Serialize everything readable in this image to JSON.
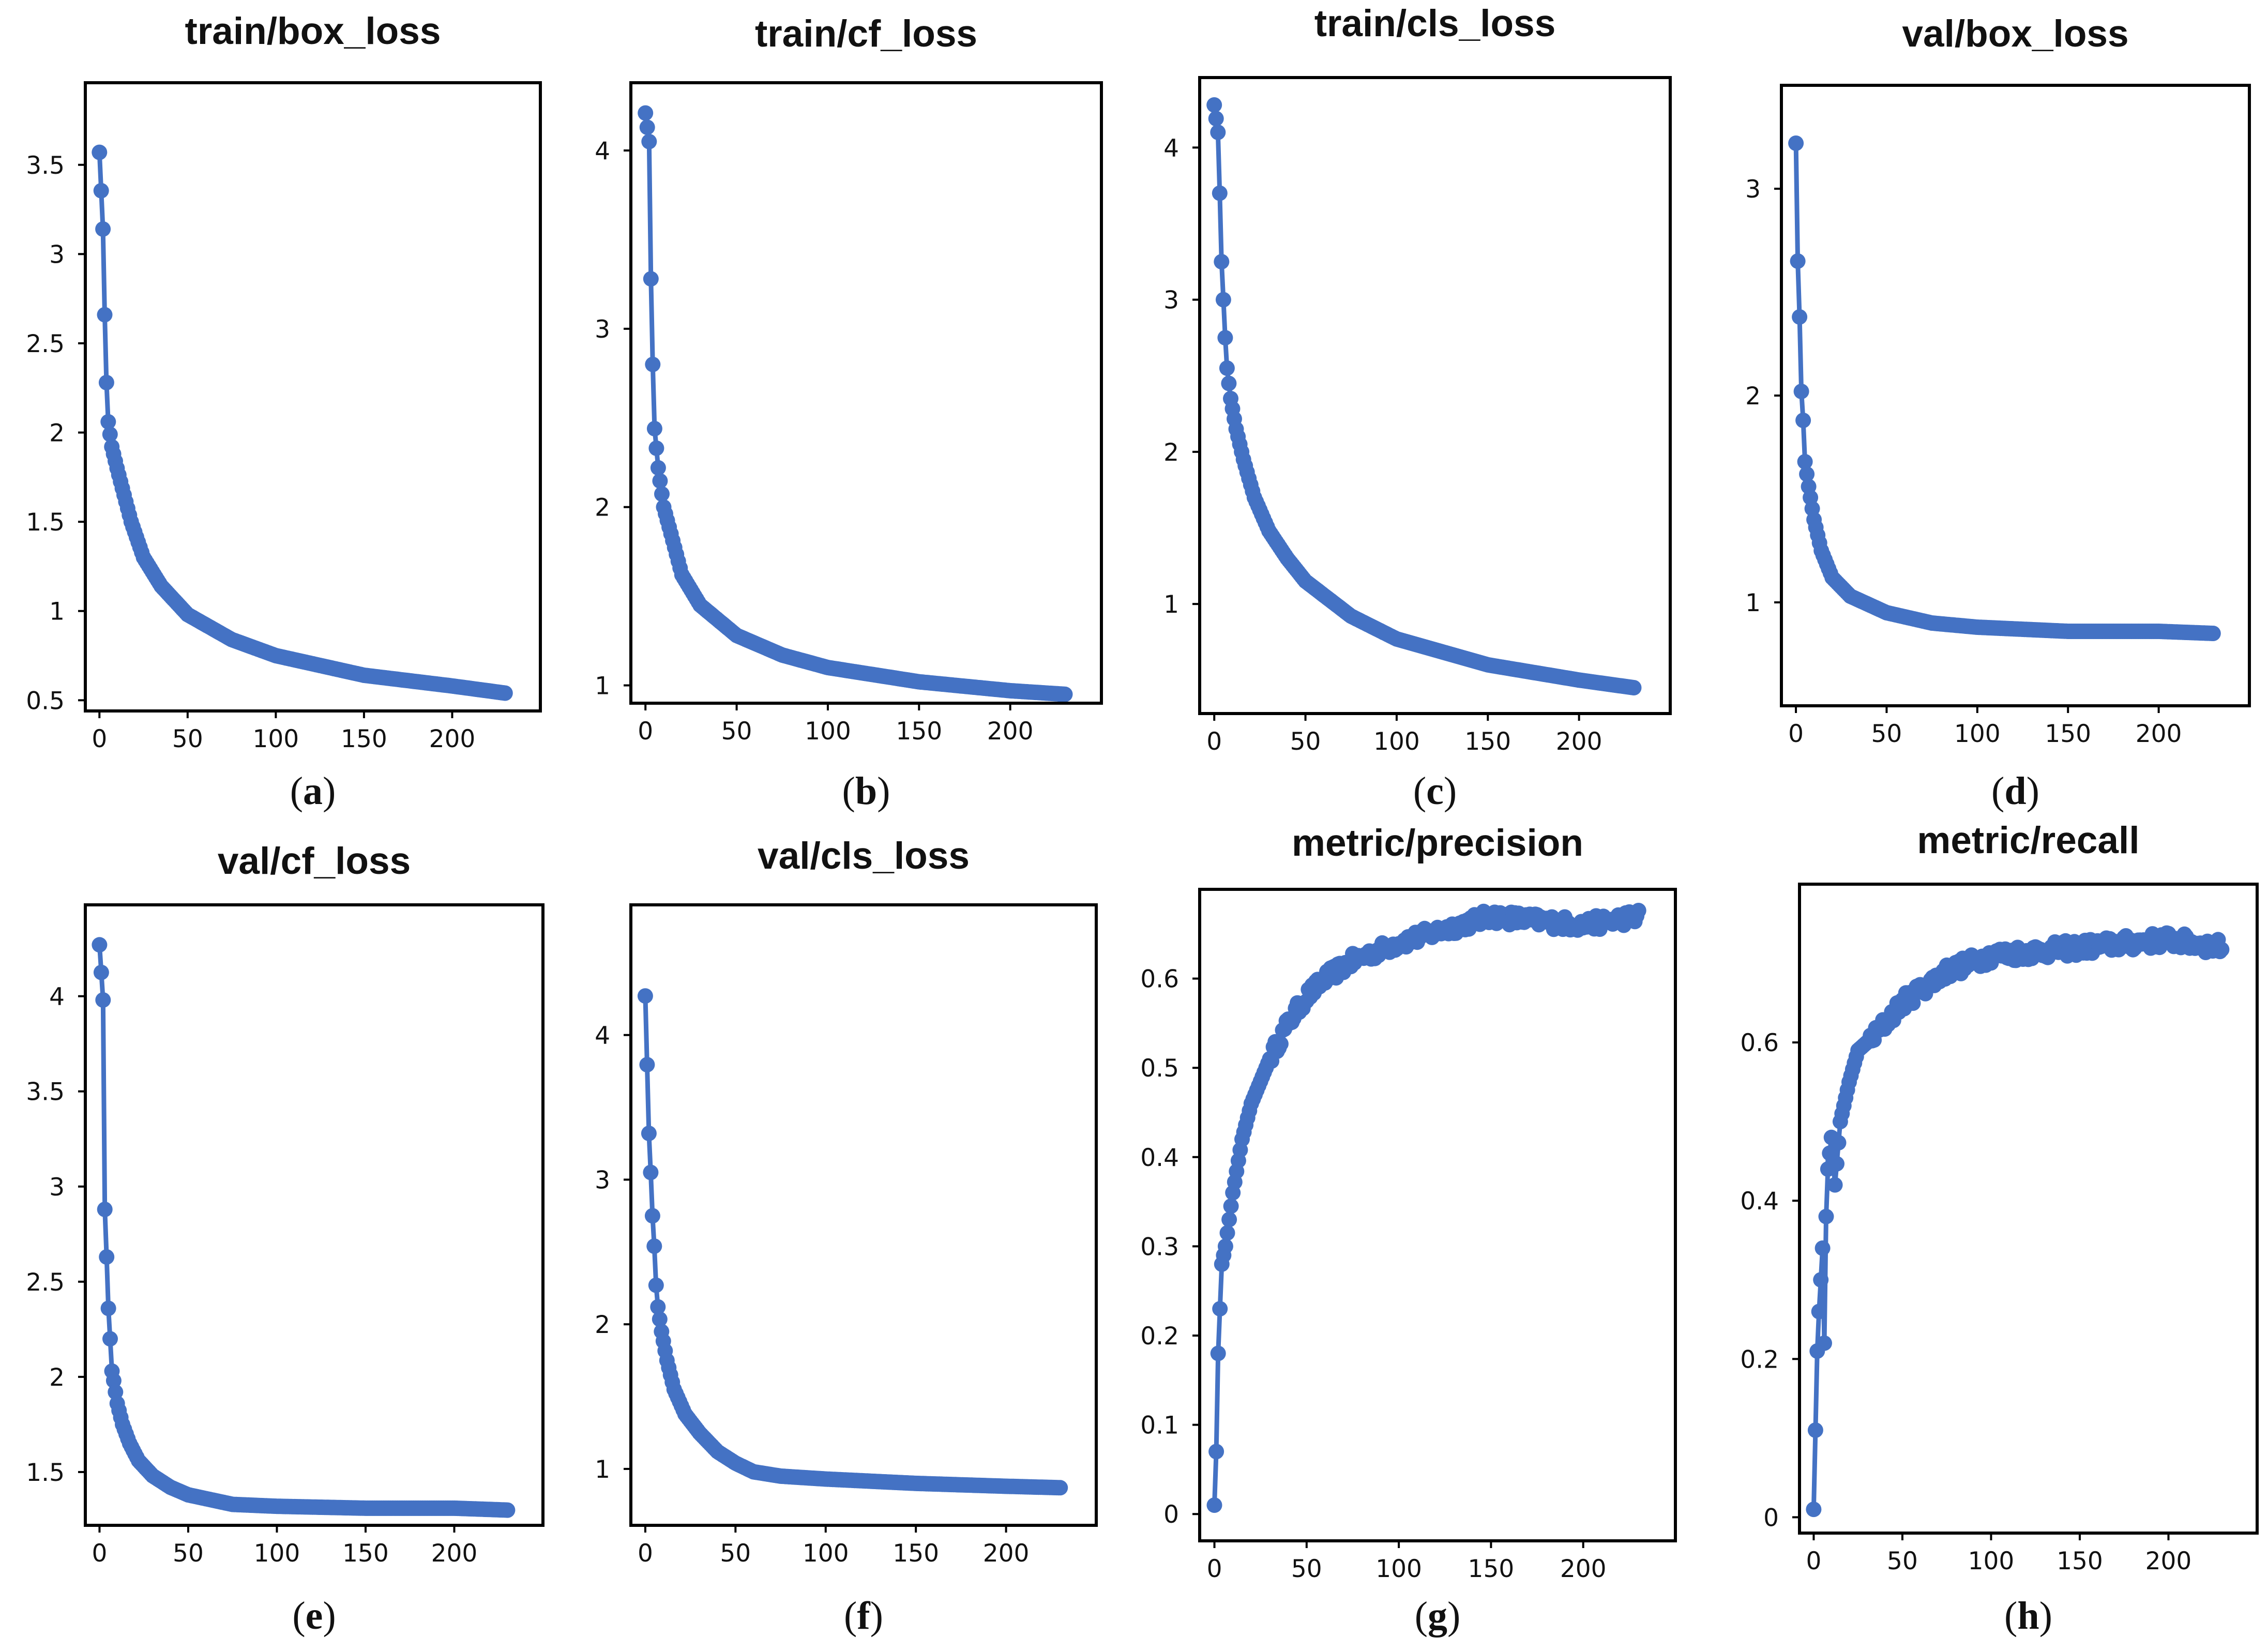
{
  "figure": {
    "series_color": "#4472c4"
  },
  "chart_data": [
    {
      "id": "a",
      "type": "line",
      "marker": "circle",
      "title": "train/box_loss",
      "caption": "a",
      "xlabel": "",
      "ylabel": "",
      "xlim": [
        -8,
        250
      ],
      "ylim": [
        0.44,
        3.96
      ],
      "xticks": [
        0,
        50,
        100,
        150,
        200
      ],
      "xtick_labels": [
        "0",
        "50",
        "100",
        "150",
        "200"
      ],
      "yticks": [
        0.5,
        1,
        1.5,
        2,
        2.5,
        3,
        3.5
      ],
      "ytick_labels": [
        "0.5",
        "1",
        "1.5",
        "2",
        "2.5",
        "3",
        "3.5"
      ],
      "curve": {
        "kind": "decay",
        "x_end": 230,
        "y0": 3.57,
        "y_end": 0.54,
        "knots": [
          [
            0,
            3.57
          ],
          [
            2,
            3.14
          ],
          [
            3,
            2.66
          ],
          [
            4,
            2.28
          ],
          [
            5,
            2.06
          ],
          [
            7,
            1.92
          ],
          [
            10,
            1.8
          ],
          [
            14,
            1.65
          ],
          [
            18,
            1.5
          ],
          [
            25,
            1.3
          ],
          [
            35,
            1.14
          ],
          [
            50,
            0.98
          ],
          [
            75,
            0.84
          ],
          [
            100,
            0.75
          ],
          [
            150,
            0.64
          ],
          [
            200,
            0.58
          ],
          [
            230,
            0.54
          ]
        ]
      },
      "series": [
        {
          "name": "train/box_loss",
          "note": "230 epochs, decaying curve"
        }
      ]
    },
    {
      "id": "b",
      "type": "line",
      "marker": "circle",
      "title": "train/cf_loss",
      "caption": "b",
      "xlabel": "",
      "ylabel": "",
      "xlim": [
        -8,
        250
      ],
      "ylim": [
        0.9,
        4.38
      ],
      "xticks": [
        0,
        50,
        100,
        150,
        200
      ],
      "xtick_labels": [
        "0",
        "50",
        "100",
        "150",
        "200"
      ],
      "yticks": [
        1,
        2,
        3,
        4
      ],
      "ytick_labels": [
        "1",
        "2",
        "3",
        "4"
      ],
      "curve": {
        "kind": "decay",
        "x_end": 230,
        "knots": [
          [
            0,
            4.21
          ],
          [
            2,
            4.05
          ],
          [
            3,
            3.28
          ],
          [
            4,
            2.8
          ],
          [
            5,
            2.44
          ],
          [
            7,
            2.22
          ],
          [
            10,
            2.0
          ],
          [
            14,
            1.85
          ],
          [
            20,
            1.62
          ],
          [
            30,
            1.45
          ],
          [
            50,
            1.28
          ],
          [
            75,
            1.17
          ],
          [
            100,
            1.1
          ],
          [
            150,
            1.02
          ],
          [
            200,
            0.97
          ],
          [
            230,
            0.95
          ]
        ]
      },
      "series": [
        {
          "name": "train/cf_loss",
          "note": "230 epochs"
        }
      ]
    },
    {
      "id": "c",
      "type": "line",
      "marker": "circle",
      "title": "train/cls_loss",
      "caption": "c",
      "xlabel": "",
      "ylabel": "",
      "xlim": [
        -8,
        250
      ],
      "ylim": [
        0.28,
        4.46
      ],
      "xticks": [
        0,
        50,
        100,
        150,
        200
      ],
      "xtick_labels": [
        "0",
        "50",
        "100",
        "150",
        "200"
      ],
      "yticks": [
        1,
        2,
        3,
        4
      ],
      "ytick_labels": [
        "1",
        "2",
        "3",
        "4"
      ],
      "curve": {
        "kind": "decay",
        "x_end": 230,
        "knots": [
          [
            0,
            4.28
          ],
          [
            2,
            4.1
          ],
          [
            3,
            3.7
          ],
          [
            4,
            3.25
          ],
          [
            5,
            3.0
          ],
          [
            6,
            2.75
          ],
          [
            7,
            2.55
          ],
          [
            9,
            2.35
          ],
          [
            12,
            2.15
          ],
          [
            16,
            1.95
          ],
          [
            22,
            1.7
          ],
          [
            30,
            1.48
          ],
          [
            40,
            1.3
          ],
          [
            50,
            1.15
          ],
          [
            75,
            0.92
          ],
          [
            100,
            0.77
          ],
          [
            150,
            0.6
          ],
          [
            200,
            0.5
          ],
          [
            230,
            0.45
          ]
        ]
      },
      "series": [
        {
          "name": "train/cls_loss",
          "note": "230 epochs"
        }
      ]
    },
    {
      "id": "d",
      "type": "line",
      "marker": "circle",
      "title": "val/box_loss",
      "caption": "d",
      "xlabel": "",
      "ylabel": "",
      "xlim": [
        -8,
        250
      ],
      "ylim": [
        0.5,
        3.5
      ],
      "xticks": [
        0,
        50,
        100,
        150,
        200
      ],
      "xtick_labels": [
        "0",
        "50",
        "100",
        "150",
        "200"
      ],
      "yticks": [
        1,
        2,
        3
      ],
      "ytick_labels": [
        "1",
        "2",
        "3"
      ],
      "curve": {
        "kind": "decay",
        "x_end": 230,
        "knots": [
          [
            0,
            3.22
          ],
          [
            1,
            2.65
          ],
          [
            2,
            2.38
          ],
          [
            3,
            2.02
          ],
          [
            4,
            1.88
          ],
          [
            5,
            1.68
          ],
          [
            7,
            1.56
          ],
          [
            10,
            1.4
          ],
          [
            14,
            1.25
          ],
          [
            20,
            1.12
          ],
          [
            30,
            1.03
          ],
          [
            50,
            0.95
          ],
          [
            75,
            0.9
          ],
          [
            100,
            0.88
          ],
          [
            150,
            0.86
          ],
          [
            200,
            0.86
          ],
          [
            230,
            0.85
          ]
        ]
      },
      "series": [
        {
          "name": "val/box_loss",
          "note": "230 epochs"
        }
      ]
    },
    {
      "id": "e",
      "type": "line",
      "marker": "circle",
      "title": "val/cf_loss",
      "caption": "e",
      "xlabel": "",
      "ylabel": "",
      "xlim": [
        -8,
        250
      ],
      "ylim": [
        1.22,
        4.48
      ],
      "xticks": [
        0,
        50,
        100,
        150,
        200
      ],
      "xtick_labels": [
        "0",
        "50",
        "100",
        "150",
        "200"
      ],
      "yticks": [
        1.5,
        2,
        2.5,
        3,
        3.5,
        4
      ],
      "ytick_labels": [
        "1.5",
        "2",
        "2.5",
        "3",
        "3.5",
        "4"
      ],
      "curve": {
        "kind": "decay",
        "x_end": 230,
        "knots": [
          [
            0,
            4.27
          ],
          [
            2,
            3.98
          ],
          [
            3,
            2.88
          ],
          [
            4,
            2.63
          ],
          [
            5,
            2.36
          ],
          [
            6,
            2.2
          ],
          [
            7,
            2.03
          ],
          [
            8,
            1.98
          ],
          [
            10,
            1.86
          ],
          [
            13,
            1.75
          ],
          [
            17,
            1.65
          ],
          [
            22,
            1.56
          ],
          [
            30,
            1.48
          ],
          [
            40,
            1.42
          ],
          [
            50,
            1.38
          ],
          [
            75,
            1.33
          ],
          [
            100,
            1.32
          ],
          [
            150,
            1.31
          ],
          [
            200,
            1.31
          ],
          [
            230,
            1.3
          ]
        ]
      },
      "series": [
        {
          "name": "val/cf_loss",
          "note": "230 epochs"
        }
      ]
    },
    {
      "id": "f",
      "type": "line",
      "marker": "circle",
      "title": "val/cls_loss",
      "caption": "f",
      "xlabel": "",
      "ylabel": "",
      "xlim": [
        -8,
        250
      ],
      "ylim": [
        0.61,
        4.9
      ],
      "xticks": [
        0,
        50,
        100,
        150,
        200
      ],
      "xtick_labels": [
        "0",
        "50",
        "100",
        "150",
        "200"
      ],
      "yticks": [
        1,
        2,
        3,
        4
      ],
      "ytick_labels": [
        "1",
        "2",
        "3",
        "4"
      ],
      "curve": {
        "kind": "decay",
        "x_end": 230,
        "knots": [
          [
            0,
            4.27
          ],
          [
            2,
            3.32
          ],
          [
            3,
            3.05
          ],
          [
            4,
            2.75
          ],
          [
            5,
            2.54
          ],
          [
            6,
            2.27
          ],
          [
            7,
            2.12
          ],
          [
            9,
            1.95
          ],
          [
            12,
            1.75
          ],
          [
            16,
            1.55
          ],
          [
            22,
            1.38
          ],
          [
            30,
            1.25
          ],
          [
            40,
            1.12
          ],
          [
            50,
            1.04
          ],
          [
            60,
            0.98
          ],
          [
            75,
            0.95
          ],
          [
            100,
            0.93
          ],
          [
            150,
            0.9
          ],
          [
            200,
            0.88
          ],
          [
            230,
            0.87
          ]
        ]
      },
      "series": [
        {
          "name": "val/cls_loss",
          "note": "230 epochs"
        }
      ]
    },
    {
      "id": "g",
      "type": "line",
      "marker": "circle",
      "title": "metric/precision",
      "caption": "g",
      "xlabel": "",
      "ylabel": "",
      "xlim": [
        -8,
        250
      ],
      "ylim": [
        -0.03,
        0.7
      ],
      "xticks": [
        0,
        50,
        100,
        150,
        200
      ],
      "xtick_labels": [
        "0",
        "50",
        "100",
        "150",
        "200"
      ],
      "yticks": [
        0,
        0.1,
        0.2,
        0.3,
        0.4,
        0.5,
        0.6
      ],
      "ytick_labels": [
        "0",
        "0.1",
        "0.2",
        "0.3",
        "0.4",
        "0.5",
        "0.6"
      ],
      "curve": {
        "kind": "growth",
        "x_end": 230,
        "noise": 0.008,
        "knots": [
          [
            0,
            0.01
          ],
          [
            1,
            0.07
          ],
          [
            2,
            0.18
          ],
          [
            3,
            0.23
          ],
          [
            4,
            0.28
          ],
          [
            6,
            0.3
          ],
          [
            8,
            0.33
          ],
          [
            10,
            0.36
          ],
          [
            15,
            0.42
          ],
          [
            20,
            0.46
          ],
          [
            30,
            0.51
          ],
          [
            40,
            0.55
          ],
          [
            50,
            0.58
          ],
          [
            60,
            0.6
          ],
          [
            75,
            0.62
          ],
          [
            100,
            0.64
          ],
          [
            150,
            0.67
          ],
          [
            200,
            0.66
          ],
          [
            230,
            0.67
          ]
        ]
      },
      "series": [
        {
          "name": "metric/precision",
          "note": "230 epochs, rising curve"
        }
      ]
    },
    {
      "id": "h",
      "type": "line",
      "marker": "circle",
      "title": "metric/recall",
      "caption": "h",
      "xlabel": "",
      "ylabel": "",
      "xlim": [
        -8,
        250
      ],
      "ylim": [
        -0.02,
        0.8
      ],
      "xticks": [
        0,
        50,
        100,
        150,
        200
      ],
      "xtick_labels": [
        "0",
        "50",
        "100",
        "150",
        "200"
      ],
      "yticks": [
        0,
        0.2,
        0.4,
        0.6
      ],
      "ytick_labels": [
        "0",
        "0.2",
        "0.4",
        "0.6"
      ],
      "curve": {
        "kind": "growth",
        "x_end": 230,
        "noise": 0.01,
        "knots": [
          [
            0,
            0.01
          ],
          [
            2,
            0.21
          ],
          [
            3,
            0.26
          ],
          [
            4,
            0.3
          ],
          [
            5,
            0.34
          ],
          [
            6,
            0.22
          ],
          [
            7,
            0.38
          ],
          [
            8,
            0.44
          ],
          [
            10,
            0.48
          ],
          [
            12,
            0.42
          ],
          [
            15,
            0.5
          ],
          [
            20,
            0.55
          ],
          [
            25,
            0.59
          ],
          [
            35,
            0.61
          ],
          [
            50,
            0.65
          ],
          [
            75,
            0.69
          ],
          [
            100,
            0.71
          ],
          [
            150,
            0.72
          ],
          [
            200,
            0.73
          ],
          [
            230,
            0.72
          ]
        ]
      },
      "series": [
        {
          "name": "metric/recall",
          "note": "230 epochs"
        }
      ]
    }
  ]
}
